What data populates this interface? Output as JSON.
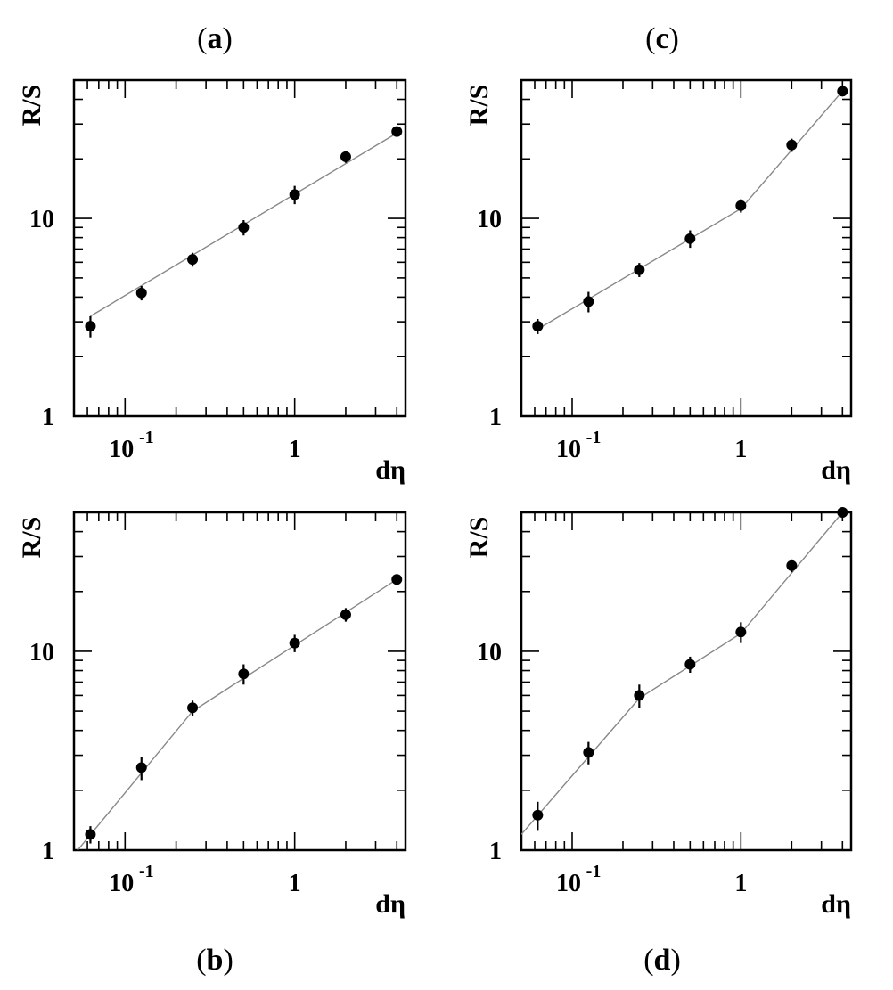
{
  "panel_tags": [
    "(a)",
    "(c)",
    "(b)",
    "(d)"
  ],
  "tag_parts": [
    {
      "open": "(",
      "letter": "a",
      "close": ")"
    },
    {
      "open": "(",
      "letter": "c",
      "close": ")"
    },
    {
      "open": "(",
      "letter": "b",
      "close": ")"
    },
    {
      "open": "(",
      "letter": "d",
      "close": ")"
    }
  ],
  "chart_data": [
    {
      "panel": "(a)",
      "type": "scatter",
      "xlabel": "dη",
      "ylabel": "R/S",
      "xscale": "log",
      "yscale": "log",
      "xlim": [
        0.05,
        4.5
      ],
      "ylim": [
        1,
        50
      ],
      "x_ticklabels": [
        "10 -1",
        "1"
      ],
      "y_ticklabels": [
        "1",
        "10"
      ],
      "x": [
        0.0625,
        0.125,
        0.25,
        0.5,
        1,
        2,
        4
      ],
      "y": [
        2.85,
        4.2,
        6.2,
        9.0,
        13.2,
        20.5,
        27.5
      ],
      "yerr": [
        0.35,
        0.35,
        0.5,
        0.8,
        1.4,
        1.4,
        0
      ],
      "fit": [
        [
          0.0625,
          3.2
        ],
        [
          4.0,
          27.0
        ]
      ],
      "grid": false,
      "legend": "none"
    },
    {
      "panel": "(c)",
      "type": "scatter",
      "xlabel": "dη",
      "ylabel": "R/S",
      "xscale": "log",
      "yscale": "log",
      "xlim": [
        0.05,
        4.5
      ],
      "ylim": [
        1,
        50
      ],
      "x_ticklabels": [
        "10 -1",
        "1"
      ],
      "y_ticklabels": [
        "1",
        "10"
      ],
      "x": [
        0.0625,
        0.125,
        0.25,
        0.5,
        1,
        2,
        4
      ],
      "y": [
        2.85,
        3.8,
        5.5,
        7.9,
        11.6,
        23.5,
        44.0
      ],
      "yerr": [
        0.25,
        0.45,
        0.45,
        0.8,
        0.9,
        1.8,
        0
      ],
      "fit": [
        [
          0.0625,
          2.75
        ],
        [
          1.0,
          11.2
        ],
        [
          4.0,
          44.0
        ]
      ],
      "grid": false,
      "legend": "none"
    },
    {
      "panel": "(b)",
      "type": "scatter",
      "xlabel": "dη",
      "ylabel": "R/S",
      "xscale": "log",
      "yscale": "log",
      "xlim": [
        0.05,
        4.5
      ],
      "ylim": [
        1,
        50
      ],
      "x_ticklabels": [
        "10 -1",
        "1"
      ],
      "y_ticklabels": [
        "1",
        "10"
      ],
      "x": [
        0.0625,
        0.125,
        0.25,
        0.5,
        1,
        2,
        4
      ],
      "y": [
        1.2,
        2.6,
        5.2,
        7.7,
        11.0,
        15.3,
        23.0
      ],
      "yerr": [
        0.12,
        0.35,
        0.45,
        0.9,
        1.1,
        1.2,
        0
      ],
      "fit": [
        [
          0.05,
          0.95
        ],
        [
          0.25,
          5.0
        ],
        [
          4.0,
          23.0
        ]
      ],
      "grid": false,
      "legend": "none"
    },
    {
      "panel": "(d)",
      "type": "scatter",
      "xlabel": "dη",
      "ylabel": "R/S",
      "xscale": "log",
      "yscale": "log",
      "xlim": [
        0.05,
        4.5
      ],
      "ylim": [
        1,
        50
      ],
      "x_ticklabels": [
        "10 -1",
        "1"
      ],
      "y_ticklabels": [
        "1",
        "10"
      ],
      "x": [
        0.0625,
        0.125,
        0.25,
        0.5,
        1,
        2,
        4
      ],
      "y": [
        1.5,
        3.1,
        6.0,
        8.6,
        12.5,
        27.0,
        50.0
      ],
      "yerr": [
        0.25,
        0.4,
        0.8,
        0.8,
        1.5,
        2.0,
        0
      ],
      "fit": [
        [
          0.05,
          1.2
        ],
        [
          0.25,
          5.8
        ],
        [
          1.0,
          12.3
        ],
        [
          4.0,
          50.0
        ]
      ],
      "grid": false,
      "legend": "none"
    }
  ]
}
